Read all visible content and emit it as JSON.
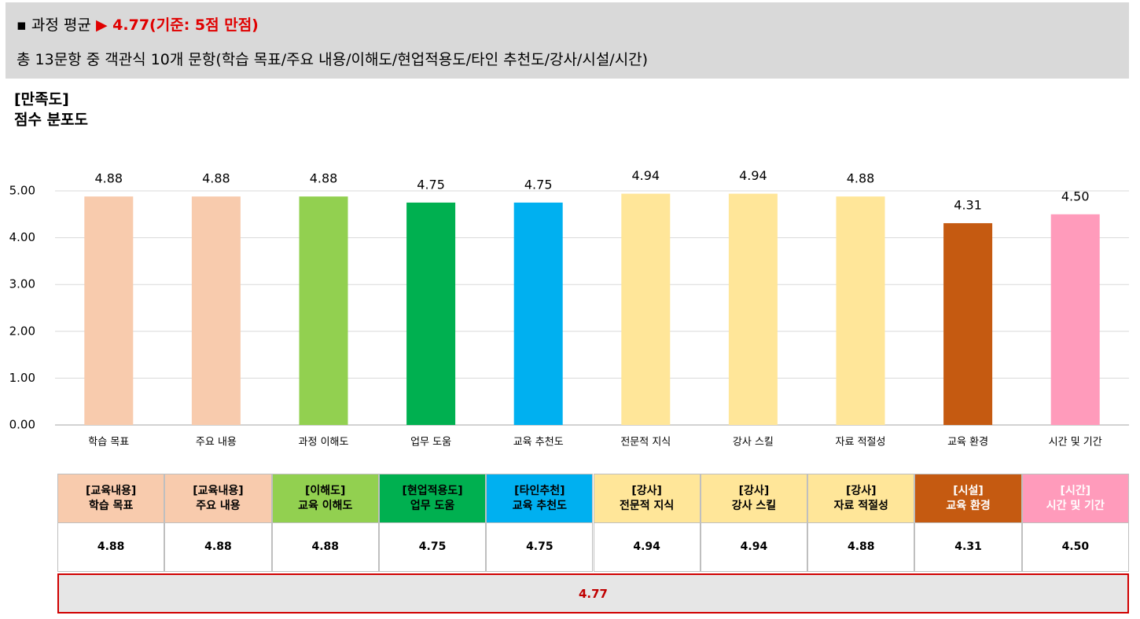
{
  "header": {
    "label": "과정 평균",
    "score": "4.77(기준: 5점 만점)",
    "description": "총 13문항 중 객관식 10개 문항(학습 목표/주요 내용/이해도/현업적용도/타인 추천도/강사/시설/시간)"
  },
  "chart_data": {
    "type": "bar",
    "title": "[만족도]",
    "subtitle": "점수 분포도",
    "categories": [
      "학습 목표",
      "주요 내용",
      "과정 이해도",
      "업무 도움",
      "교육 추천도",
      "전문적 지식",
      "강사 스킬",
      "자료 적절성",
      "교육 환경",
      "시간 및 기간"
    ],
    "values": [
      4.88,
      4.88,
      4.88,
      4.75,
      4.75,
      4.94,
      4.94,
      4.88,
      4.31,
      4.5
    ],
    "value_labels": [
      "4.88",
      "4.88",
      "4.88",
      "4.75",
      "4.75",
      "4.94",
      "4.94",
      "4.88",
      "4.31",
      "4.50"
    ],
    "colors": [
      "#f8cbad",
      "#f8cbad",
      "#92d050",
      "#00b050",
      "#00b0f0",
      "#ffe699",
      "#ffe699",
      "#ffe699",
      "#c55a11",
      "#ff9bbb"
    ],
    "ylim": [
      0,
      5
    ],
    "yticks": [
      {
        "value": 0,
        "label": "0.00"
      },
      {
        "value": 1,
        "label": "1.00"
      },
      {
        "value": 2,
        "label": "2.00"
      },
      {
        "value": 3,
        "label": "3.00"
      },
      {
        "value": 4,
        "label": "4.00"
      },
      {
        "value": 5,
        "label": "5.00"
      }
    ],
    "grid": true
  },
  "table": {
    "columns": [
      {
        "group": "[교육내용]",
        "name": "학습 목표",
        "color": "#f8cbad",
        "text_color": "#000000"
      },
      {
        "group": "[교육내용]",
        "name": "주요 내용",
        "color": "#f8cbad",
        "text_color": "#000000"
      },
      {
        "group": "[이해도]",
        "name": "교육 이해도",
        "color": "#92d050",
        "text_color": "#000000"
      },
      {
        "group": "[현업적용도]",
        "name": "업무 도움",
        "color": "#00b050",
        "text_color": "#000000"
      },
      {
        "group": "[타인추천]",
        "name": "교육 추천도",
        "color": "#00b0f0",
        "text_color": "#000000"
      },
      {
        "group": "[강사]",
        "name": "전문적 지식",
        "color": "#ffe699",
        "text_color": "#000000"
      },
      {
        "group": "[강사]",
        "name": "강사 스킬",
        "color": "#ffe699",
        "text_color": "#000000"
      },
      {
        "group": "[강사]",
        "name": "자료 적절성",
        "color": "#ffe699",
        "text_color": "#000000"
      },
      {
        "group": "[시설]",
        "name": "교육 환경",
        "color": "#c55a11",
        "text_color": "#ffffff"
      },
      {
        "group": "[시간]",
        "name": "시간 및 기간",
        "color": "#ff9bbb",
        "text_color": "#ffffff"
      }
    ],
    "scores": [
      "4.88",
      "4.88",
      "4.88",
      "4.75",
      "4.75",
      "4.94",
      "4.94",
      "4.88",
      "4.31",
      "4.50"
    ],
    "total": "4.77"
  }
}
